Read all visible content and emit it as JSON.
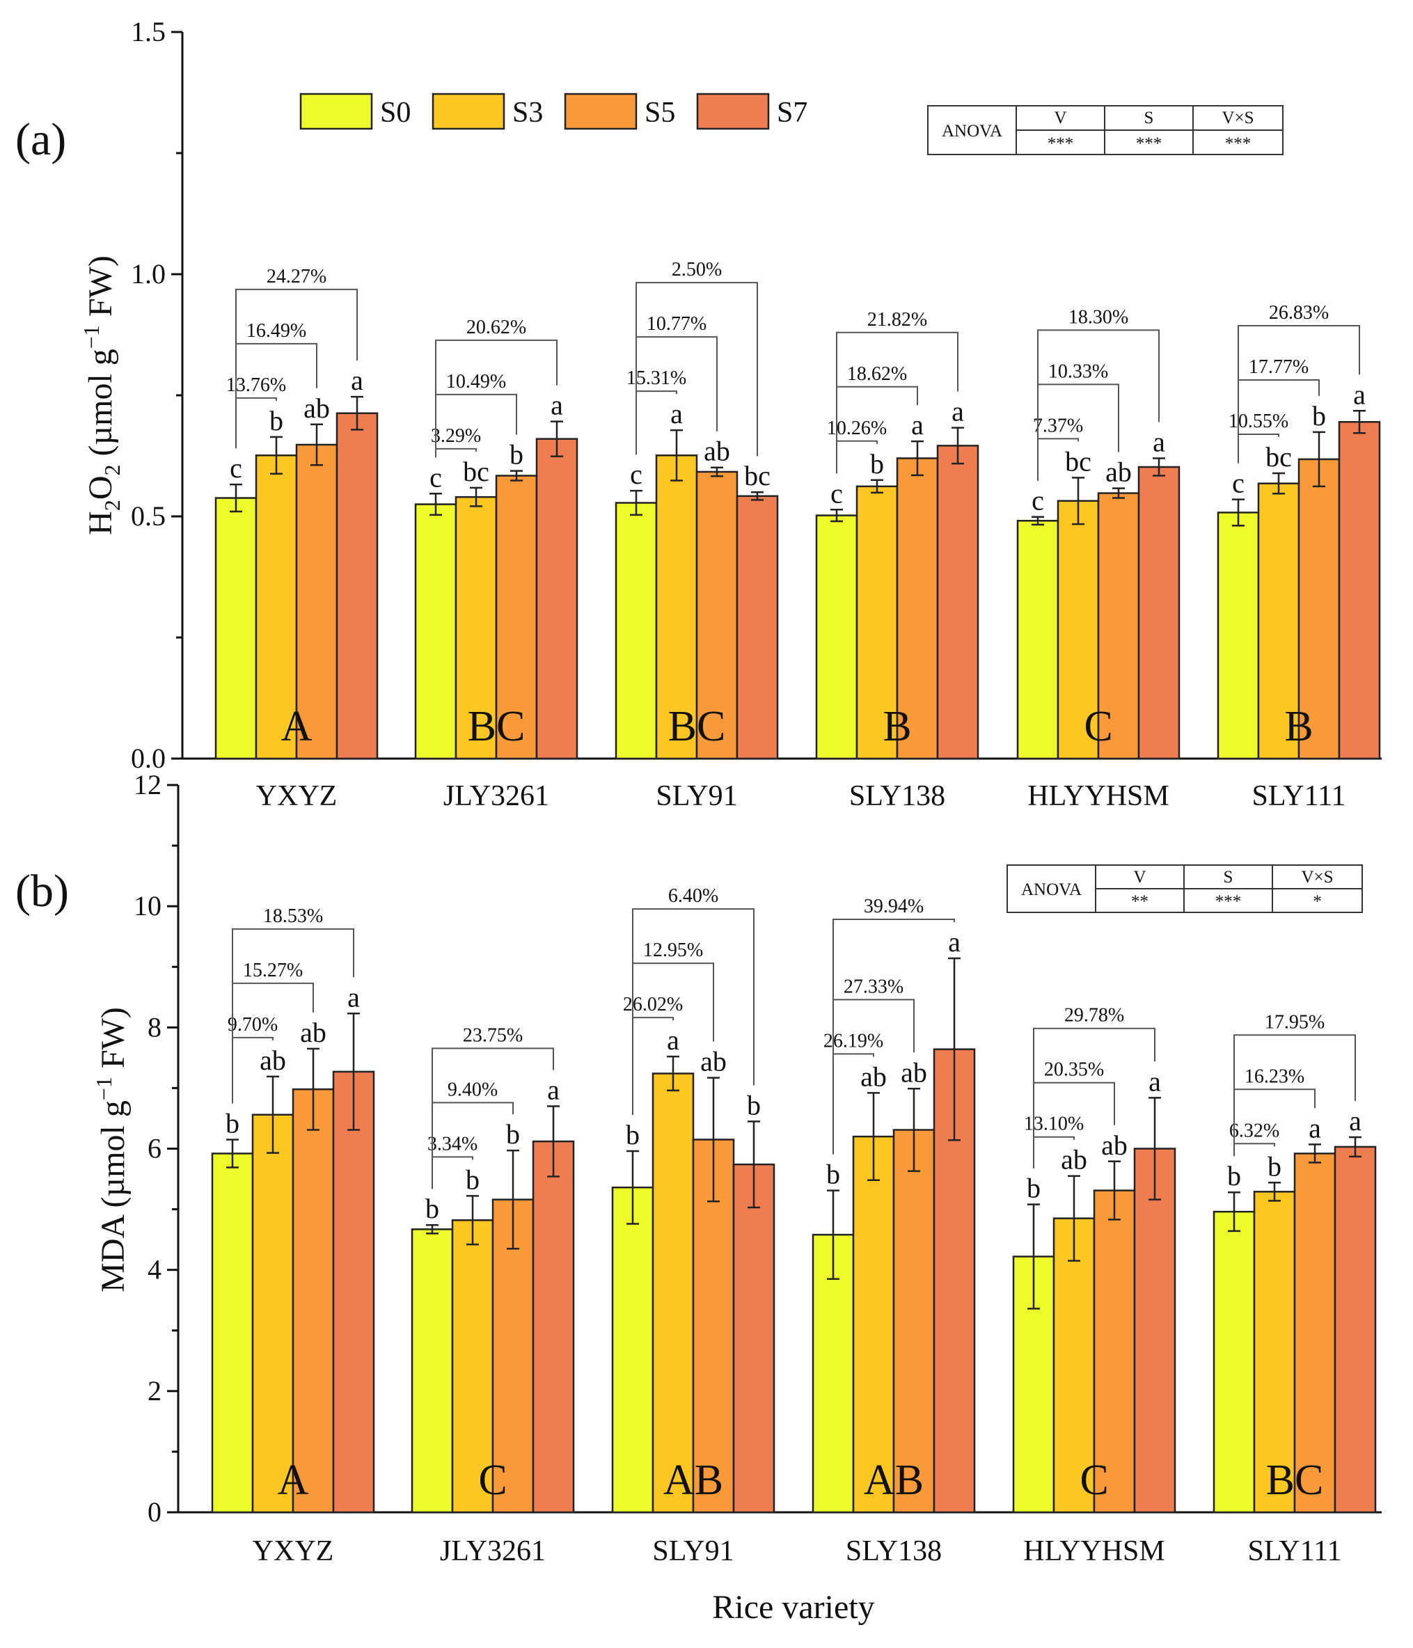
{
  "chart_data": [
    {
      "type": "bar",
      "panel_label": "(a)",
      "ylabel": "H2O2 (µmol g-1 FW)",
      "ylabel_parts": [
        "H",
        "2",
        "O",
        "2",
        " (µmol g",
        "−1",
        " FW)"
      ],
      "ylim": [
        0,
        1.5
      ],
      "yticks": [
        "0.0",
        "0.5",
        "1.0",
        "1.5"
      ],
      "categories": [
        "YXYZ",
        "JLY3261",
        "SLY91",
        "SLY138",
        "HLYYHSM",
        "SLY111"
      ],
      "series": [
        {
          "name": "S0",
          "values": [
            0.538,
            0.525,
            0.528,
            0.502,
            0.491,
            0.508
          ],
          "errors": [
            0.028,
            0.022,
            0.025,
            0.012,
            0.008,
            0.027
          ],
          "letters": [
            "c",
            "c",
            "c",
            "c",
            "c",
            "c"
          ]
        },
        {
          "name": "S3",
          "values": [
            0.626,
            0.54,
            0.626,
            0.562,
            0.532,
            0.568
          ],
          "errors": [
            0.038,
            0.019,
            0.052,
            0.013,
            0.048,
            0.021
          ],
          "letters": [
            "b",
            "bc",
            "a",
            "b",
            "bc",
            "bc"
          ]
        },
        {
          "name": "S5",
          "values": [
            0.648,
            0.584,
            0.592,
            0.62,
            0.548,
            0.618
          ],
          "errors": [
            0.042,
            0.01,
            0.009,
            0.035,
            0.01,
            0.056
          ],
          "letters": [
            "ab",
            "b",
            "ab",
            "a",
            "ab",
            "b"
          ]
        },
        {
          "name": "S7",
          "values": [
            0.713,
            0.66,
            0.542,
            0.646,
            0.602,
            0.695
          ],
          "errors": [
            0.034,
            0.036,
            0.008,
            0.037,
            0.018,
            0.023
          ],
          "letters": [
            "a",
            "a",
            "bc",
            "a",
            "a",
            "a"
          ]
        }
      ],
      "group_letters": [
        "A",
        "BC",
        "BC",
        "B",
        "C",
        "B"
      ],
      "percent_labels": [
        [
          "13.76%",
          "16.49%",
          "24.27%"
        ],
        [
          "3.29%",
          "10.49%",
          "20.62%"
        ],
        [
          "15.31%",
          "10.77%",
          "2.50%"
        ],
        [
          "10.26%",
          "18.62%",
          "21.82%"
        ],
        [
          "7.37%",
          "10.33%",
          "18.30%"
        ],
        [
          "10.55%",
          "17.77%",
          "26.83%"
        ]
      ],
      "anova": {
        "label": "ANOVA",
        "headers": [
          "V",
          "S",
          "V×S"
        ],
        "values": [
          "***",
          "***",
          "***"
        ]
      }
    },
    {
      "type": "bar",
      "panel_label": "(b)",
      "ylabel": "MDA (µmol g-1 FW)",
      "ylabel_parts": [
        "MDA (µmol g",
        "−1",
        " FW)"
      ],
      "ylim": [
        0,
        12
      ],
      "yticks": [
        "0",
        "2",
        "4",
        "6",
        "8",
        "10",
        "12"
      ],
      "xlabel": "Rice variety",
      "categories": [
        "YXYZ",
        "JLY3261",
        "SLY91",
        "SLY138",
        "HLYYHSM",
        "SLY111"
      ],
      "series": [
        {
          "name": "S0",
          "values": [
            5.92,
            4.67,
            5.36,
            4.58,
            4.22,
            4.96
          ],
          "errors": [
            0.23,
            0.07,
            0.6,
            0.73,
            0.86,
            0.32
          ],
          "letters": [
            "b",
            "b",
            "b",
            "b",
            "b",
            "b"
          ]
        },
        {
          "name": "S3",
          "values": [
            6.56,
            4.82,
            7.24,
            6.2,
            4.85,
            5.29
          ],
          "errors": [
            0.63,
            0.4,
            0.28,
            0.72,
            0.7,
            0.15
          ],
          "letters": [
            "ab",
            "b",
            "a",
            "ab",
            "ab",
            "b"
          ]
        },
        {
          "name": "S5",
          "values": [
            6.98,
            5.16,
            6.15,
            6.31,
            5.31,
            5.92
          ],
          "errors": [
            0.67,
            0.81,
            1.02,
            0.68,
            0.48,
            0.15
          ],
          "letters": [
            "ab",
            "b",
            "ab",
            "ab",
            "ab",
            "a"
          ]
        },
        {
          "name": "S7",
          "values": [
            7.27,
            6.12,
            5.74,
            7.64,
            6.0,
            6.03
          ],
          "errors": [
            0.96,
            0.58,
            0.71,
            1.5,
            0.84,
            0.16
          ],
          "letters": [
            "a",
            "a",
            "b",
            "a",
            "a",
            "a"
          ]
        }
      ],
      "group_letters": [
        "A",
        "C",
        "AB",
        "AB",
        "C",
        "BC"
      ],
      "percent_labels": [
        [
          "9.70%",
          "15.27%",
          "18.53%"
        ],
        [
          "3.34%",
          "9.40%",
          "23.75%"
        ],
        [
          "26.02%",
          "12.95%",
          "6.40%"
        ],
        [
          "26.19%",
          "27.33%",
          "39.94%"
        ],
        [
          "13.10%",
          "20.35%",
          "29.78%"
        ],
        [
          "6.32%",
          "16.23%",
          "17.95%"
        ]
      ],
      "anova": {
        "label": "ANOVA",
        "headers": [
          "V",
          "S",
          "V×S"
        ],
        "values": [
          "**",
          "***",
          "*"
        ]
      }
    }
  ],
  "legend": {
    "items": [
      "S0",
      "S3",
      "S5",
      "S7"
    ],
    "colors": [
      "#EEFB2B",
      "#FCC623",
      "#F99A3A",
      "#EE7D52"
    ]
  },
  "colors": {
    "axis": "#111111",
    "bar_edge": "#222222",
    "bracket": "#555555"
  }
}
